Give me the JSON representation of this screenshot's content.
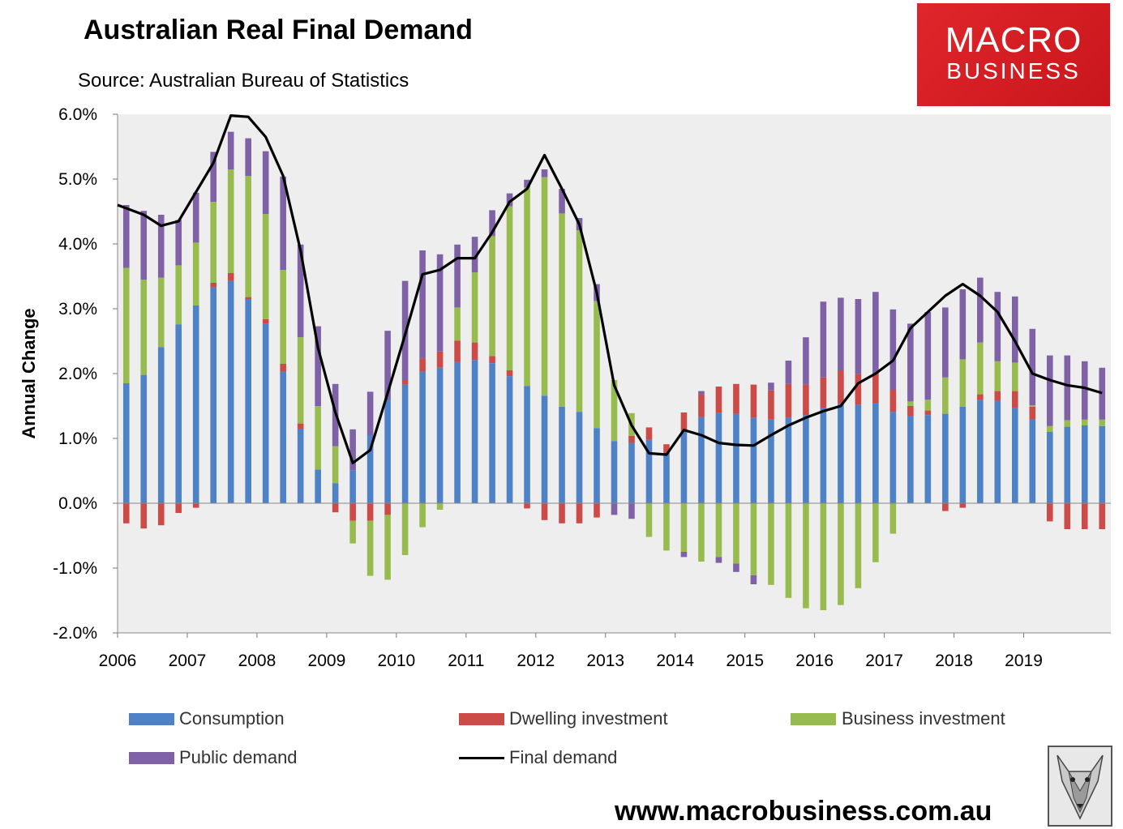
{
  "title": "Australian Real Final Demand",
  "subtitle": "Source: Australian Bureau of Statistics",
  "logo": {
    "line1": "MACRO",
    "line2": "BUSINESS"
  },
  "website": "www.macrobusiness.com.au",
  "mascot_icon": "wolf-icon",
  "colors": {
    "consumption": "#4f81c6",
    "dwelling": "#cc4a47",
    "business": "#98bb4f",
    "public": "#7f62a5",
    "final": "#000000",
    "plot_bg": "#eeeeee",
    "logo_bg": "#d71f26"
  },
  "chart_data": {
    "type": "bar",
    "stacked": true,
    "title": "Australian Real Final Demand",
    "subtitle": "Source: Australian Bureau of Statistics",
    "ylabel": "Annual Change",
    "xlabel": "",
    "ylim": [
      -2.0,
      6.0
    ],
    "yticks": [
      "6.0%",
      "5.0%",
      "4.0%",
      "3.0%",
      "2.0%",
      "1.0%",
      "0.0%",
      "-1.0%",
      "-2.0%"
    ],
    "ytick_values": [
      6,
      5,
      4,
      3,
      2,
      1,
      0,
      -1,
      -2
    ],
    "xticks": [
      "2006",
      "2007",
      "2008",
      "2009",
      "2010",
      "2011",
      "2012",
      "2013",
      "2014",
      "2015",
      "2016",
      "2017",
      "2018",
      "2019"
    ],
    "quarters_per_year": 4,
    "legend_position": "bottom",
    "series": [
      {
        "name": "Consumption",
        "kind": "bar",
        "values": [
          1.85,
          1.98,
          2.41,
          2.76,
          3.05,
          3.33,
          3.43,
          3.15,
          2.77,
          2.03,
          1.15,
          0.52,
          0.31,
          0.51,
          1.05,
          1.6,
          1.83,
          2.03,
          2.09,
          2.18,
          2.21,
          2.16,
          1.96,
          1.81,
          1.66,
          1.49,
          1.41,
          1.16,
          0.96,
          0.93,
          0.98,
          0.76,
          1.13,
          1.33,
          1.39,
          1.38,
          1.32,
          1.29,
          1.32,
          1.36,
          1.47,
          1.54,
          1.52,
          1.55,
          1.41,
          1.35,
          1.36,
          1.38,
          1.49,
          1.59,
          1.58,
          1.47,
          1.3,
          1.1,
          1.18,
          1.2,
          1.19
        ]
      },
      {
        "name": "Dwelling investment",
        "kind": "bar",
        "values": [
          -0.31,
          -0.39,
          -0.34,
          -0.15,
          -0.07,
          0.07,
          0.12,
          0.03,
          0.07,
          0.12,
          0.08,
          0,
          -0.14,
          -0.27,
          -0.27,
          -0.18,
          0.07,
          0.2,
          0.25,
          0.33,
          0.27,
          0.11,
          0.09,
          -0.08,
          -0.26,
          -0.31,
          -0.31,
          -0.22,
          0,
          0.11,
          0.19,
          0.15,
          0.27,
          0.35,
          0.41,
          0.46,
          0.51,
          0.45,
          0.52,
          0.47,
          0.47,
          0.51,
          0.47,
          0.45,
          0.34,
          0.15,
          0.07,
          -0.12,
          -0.07,
          0.09,
          0.15,
          0.26,
          0.19,
          -0.28,
          -0.4,
          -0.4,
          -0.4
        ]
      },
      {
        "name": "Business investment",
        "kind": "bar",
        "values": [
          1.78,
          1.47,
          1.07,
          0.91,
          0.97,
          1.25,
          1.6,
          1.87,
          1.62,
          1.45,
          1.33,
          0.98,
          0.57,
          -0.35,
          -0.85,
          -1.0,
          -0.8,
          -0.37,
          -0.1,
          0.51,
          1.08,
          1.85,
          2.53,
          3.06,
          3.37,
          2.98,
          2.8,
          1.96,
          0.94,
          0.35,
          -0.52,
          -0.73,
          -0.75,
          -0.9,
          -0.83,
          -0.93,
          -1.11,
          -1.26,
          -1.46,
          -1.62,
          -1.65,
          -1.57,
          -1.31,
          -0.91,
          -0.47,
          0.07,
          0.17,
          0.56,
          0.73,
          0.8,
          0.46,
          0.44,
          0.02,
          0.09,
          0.1,
          0.09,
          0.1
        ]
      },
      {
        "name": "Public demand",
        "kind": "bar",
        "values": [
          0.97,
          1.06,
          0.97,
          0.7,
          0.77,
          0.77,
          0.58,
          0.58,
          0.97,
          1.44,
          1.43,
          1.23,
          0.96,
          0.63,
          0.67,
          1.06,
          1.53,
          1.67,
          1.5,
          0.97,
          0.55,
          0.4,
          0.2,
          0.12,
          0.12,
          0.38,
          0.19,
          0.26,
          -0.18,
          -0.24,
          0,
          0,
          -0.08,
          0.05,
          -0.09,
          -0.13,
          -0.14,
          0.12,
          0.36,
          0.73,
          1.17,
          1.12,
          1.16,
          1.26,
          1.24,
          1.2,
          1.35,
          1.08,
          1.08,
          1.0,
          1.07,
          1.02,
          1.18,
          1.09,
          1.0,
          0.9,
          0.8
        ]
      },
      {
        "name": "Final demand",
        "kind": "line",
        "values": [
          4.6,
          4.45,
          4.28,
          4.35,
          4.8,
          5.25,
          5.98,
          5.96,
          5.65,
          5.05,
          3.9,
          2.4,
          1.4,
          0.62,
          0.82,
          1.7,
          2.6,
          3.53,
          3.6,
          3.78,
          3.78,
          4.18,
          4.65,
          4.85,
          5.37,
          4.85,
          4.3,
          3.25,
          1.82,
          1.2,
          0.77,
          0.75,
          1.13,
          1.05,
          0.93,
          0.9,
          0.89,
          1.05,
          1.2,
          1.32,
          1.42,
          1.5,
          1.85,
          2.0,
          2.2,
          2.7,
          2.95,
          3.2,
          3.38,
          3.2,
          2.95,
          2.5,
          2.0,
          1.9,
          1.82,
          1.78,
          1.7
        ]
      }
    ]
  },
  "legend": [
    {
      "label": "Consumption",
      "key": "consumption",
      "kind": "bar"
    },
    {
      "label": "Dwelling investment",
      "key": "dwelling",
      "kind": "bar"
    },
    {
      "label": "Business investment",
      "key": "business",
      "kind": "bar"
    },
    {
      "label": "Public demand",
      "key": "public",
      "kind": "bar"
    },
    {
      "label": "Final demand",
      "key": "final",
      "kind": "line"
    }
  ]
}
